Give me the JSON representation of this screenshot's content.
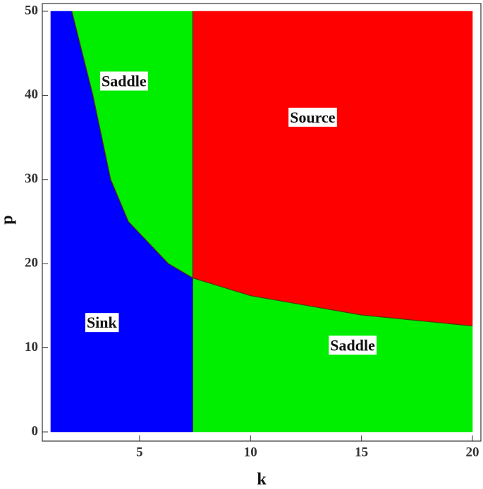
{
  "chart_data": {
    "type": "region",
    "x_label": "k",
    "y_label": "p",
    "xlim": [
      0.62,
      20.38
    ],
    "ylim": [
      -1.09,
      50.92
    ],
    "xticks": [
      5,
      10,
      15,
      20
    ],
    "yticks": [
      0,
      10,
      20,
      30,
      40,
      50
    ],
    "domain_x": [
      1,
      20
    ],
    "domain_y": [
      0,
      50
    ],
    "divider_x": 7.4,
    "boundary": {
      "x": [
        1.95,
        2.9,
        3.7,
        4.5,
        6.3,
        7.4,
        10,
        15,
        20
      ],
      "y": [
        50,
        40,
        30,
        25,
        20,
        18.3,
        16.2,
        13.9,
        12.6
      ]
    },
    "regions": [
      {
        "name": "Saddle",
        "color": "#00ee00"
      },
      {
        "name": "Source",
        "color": "#ff0000"
      },
      {
        "name": "Sink",
        "color": "#0000ff"
      },
      {
        "name": "Saddle",
        "color": "#00ee00"
      }
    ]
  }
}
